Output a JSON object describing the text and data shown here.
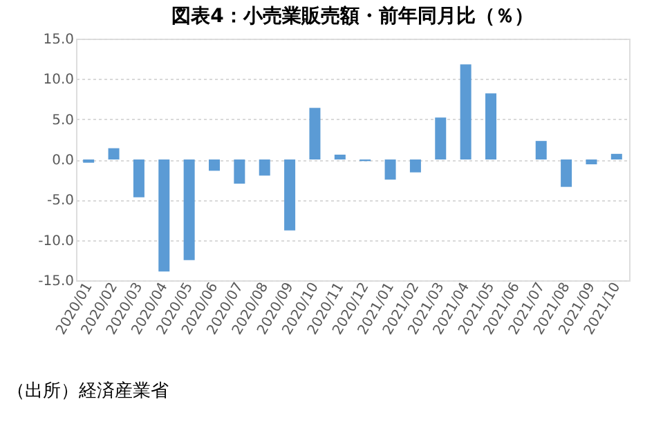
{
  "chart_data": {
    "type": "bar",
    "title": "図表4：小売業販売額・前年同月比（％）",
    "categories": [
      "2020/01",
      "2020/02",
      "2020/03",
      "2020/04",
      "2020/05",
      "2020/06",
      "2020/07",
      "2020/08",
      "2020/09",
      "2020/10",
      "2020/11",
      "2020/12",
      "2021/01",
      "2021/02",
      "2021/03",
      "2021/04",
      "2021/05",
      "2021/06",
      "2021/07",
      "2021/08",
      "2021/09",
      "2021/10"
    ],
    "values": [
      -0.4,
      1.4,
      -4.7,
      -13.9,
      -12.5,
      -1.4,
      -3.0,
      -2.0,
      -8.8,
      6.4,
      0.6,
      -0.2,
      -2.5,
      -1.6,
      5.2,
      11.8,
      8.2,
      0.0,
      2.3,
      -3.4,
      -0.6,
      0.7
    ],
    "color": "#5b9bd5",
    "ylim": [
      -15,
      15
    ],
    "yticks": [
      {
        "value": -15,
        "label": "-15.0"
      },
      {
        "value": -10,
        "label": "-10.0"
      },
      {
        "value": -5,
        "label": "-5.0"
      },
      {
        "value": 0,
        "label": "0.0"
      },
      {
        "value": 5,
        "label": "5.0"
      },
      {
        "value": 10,
        "label": "10.0"
      },
      {
        "value": 15,
        "label": "15.0"
      }
    ],
    "grid": "y",
    "annotations": [
      "（出所）経済産業省"
    ]
  }
}
